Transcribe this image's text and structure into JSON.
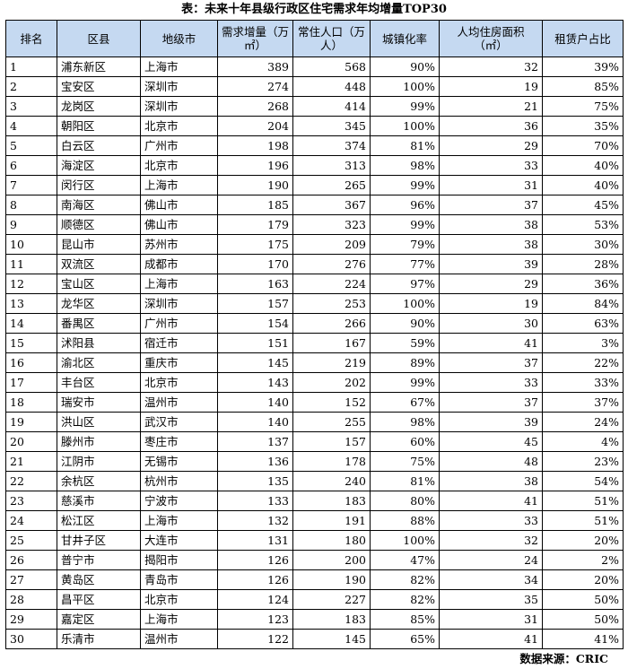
{
  "title": "表：未来十年县级行政区住宅需求年均增量TOP30",
  "headers": {
    "rank": "排名",
    "district": "区县",
    "city": "地级市",
    "demand": "需求增量（万㎡）",
    "population": "常住人口（万人）",
    "urbanization": "城镇化率",
    "area_per_capita": "人均住房面积（㎡）",
    "rental_share": "租赁户占比"
  },
  "rows": [
    {
      "rank": "1",
      "district": "浦东新区",
      "city": "上海市",
      "demand": "389",
      "population": "568",
      "urbanization": "90%",
      "area": "32",
      "rental": "39%"
    },
    {
      "rank": "2",
      "district": "宝安区",
      "city": "深圳市",
      "demand": "274",
      "population": "448",
      "urbanization": "100%",
      "area": "19",
      "rental": "85%"
    },
    {
      "rank": "3",
      "district": "龙岗区",
      "city": "深圳市",
      "demand": "268",
      "population": "414",
      "urbanization": "99%",
      "area": "21",
      "rental": "75%"
    },
    {
      "rank": "4",
      "district": "朝阳区",
      "city": "北京市",
      "demand": "204",
      "population": "345",
      "urbanization": "100%",
      "area": "36",
      "rental": "35%"
    },
    {
      "rank": "5",
      "district": "白云区",
      "city": "广州市",
      "demand": "198",
      "population": "374",
      "urbanization": "81%",
      "area": "29",
      "rental": "70%"
    },
    {
      "rank": "6",
      "district": "海淀区",
      "city": "北京市",
      "demand": "196",
      "population": "313",
      "urbanization": "98%",
      "area": "33",
      "rental": "40%"
    },
    {
      "rank": "7",
      "district": "闵行区",
      "city": "上海市",
      "demand": "190",
      "population": "265",
      "urbanization": "99%",
      "area": "31",
      "rental": "40%"
    },
    {
      "rank": "8",
      "district": "南海区",
      "city": "佛山市",
      "demand": "185",
      "population": "367",
      "urbanization": "96%",
      "area": "37",
      "rental": "45%"
    },
    {
      "rank": "9",
      "district": "顺德区",
      "city": "佛山市",
      "demand": "179",
      "population": "323",
      "urbanization": "99%",
      "area": "38",
      "rental": "53%"
    },
    {
      "rank": "10",
      "district": "昆山市",
      "city": "苏州市",
      "demand": "175",
      "population": "209",
      "urbanization": "79%",
      "area": "38",
      "rental": "30%"
    },
    {
      "rank": "11",
      "district": "双流区",
      "city": "成都市",
      "demand": "170",
      "population": "276",
      "urbanization": "77%",
      "area": "39",
      "rental": "28%"
    },
    {
      "rank": "12",
      "district": "宝山区",
      "city": "上海市",
      "demand": "163",
      "population": "224",
      "urbanization": "97%",
      "area": "29",
      "rental": "36%"
    },
    {
      "rank": "13",
      "district": "龙华区",
      "city": "深圳市",
      "demand": "157",
      "population": "253",
      "urbanization": "100%",
      "area": "19",
      "rental": "84%"
    },
    {
      "rank": "14",
      "district": "番禺区",
      "city": "广州市",
      "demand": "154",
      "population": "266",
      "urbanization": "90%",
      "area": "30",
      "rental": "63%"
    },
    {
      "rank": "15",
      "district": "沭阳县",
      "city": "宿迁市",
      "demand": "151",
      "population": "167",
      "urbanization": "59%",
      "area": "41",
      "rental": "3%"
    },
    {
      "rank": "16",
      "district": "渝北区",
      "city": "重庆市",
      "demand": "145",
      "population": "219",
      "urbanization": "89%",
      "area": "37",
      "rental": "22%"
    },
    {
      "rank": "17",
      "district": "丰台区",
      "city": "北京市",
      "demand": "143",
      "population": "202",
      "urbanization": "99%",
      "area": "33",
      "rental": "33%"
    },
    {
      "rank": "18",
      "district": "瑞安市",
      "city": "温州市",
      "demand": "140",
      "population": "152",
      "urbanization": "67%",
      "area": "37",
      "rental": "37%"
    },
    {
      "rank": "19",
      "district": "洪山区",
      "city": "武汉市",
      "demand": "140",
      "population": "255",
      "urbanization": "98%",
      "area": "39",
      "rental": "24%"
    },
    {
      "rank": "20",
      "district": "滕州市",
      "city": "枣庄市",
      "demand": "137",
      "population": "157",
      "urbanization": "60%",
      "area": "45",
      "rental": "4%"
    },
    {
      "rank": "21",
      "district": "江阴市",
      "city": "无锡市",
      "demand": "136",
      "population": "178",
      "urbanization": "75%",
      "area": "48",
      "rental": "23%"
    },
    {
      "rank": "22",
      "district": "余杭区",
      "city": "杭州市",
      "demand": "135",
      "population": "240",
      "urbanization": "81%",
      "area": "38",
      "rental": "54%"
    },
    {
      "rank": "23",
      "district": "慈溪市",
      "city": "宁波市",
      "demand": "133",
      "population": "183",
      "urbanization": "80%",
      "area": "41",
      "rental": "51%"
    },
    {
      "rank": "24",
      "district": "松江区",
      "city": "上海市",
      "demand": "132",
      "population": "191",
      "urbanization": "88%",
      "area": "33",
      "rental": "51%"
    },
    {
      "rank": "25",
      "district": "甘井子区",
      "city": "大连市",
      "demand": "131",
      "population": "180",
      "urbanization": "100%",
      "area": "32",
      "rental": "20%"
    },
    {
      "rank": "26",
      "district": "普宁市",
      "city": "揭阳市",
      "demand": "126",
      "population": "200",
      "urbanization": "47%",
      "area": "24",
      "rental": "2%"
    },
    {
      "rank": "27",
      "district": "黄岛区",
      "city": "青岛市",
      "demand": "126",
      "population": "190",
      "urbanization": "82%",
      "area": "34",
      "rental": "20%"
    },
    {
      "rank": "28",
      "district": "昌平区",
      "city": "北京市",
      "demand": "124",
      "population": "227",
      "urbanization": "82%",
      "area": "35",
      "rental": "50%"
    },
    {
      "rank": "29",
      "district": "嘉定区",
      "city": "上海市",
      "demand": "123",
      "population": "183",
      "urbanization": "85%",
      "area": "31",
      "rental": "50%"
    },
    {
      "rank": "30",
      "district": "乐清市",
      "city": "温州市",
      "demand": "122",
      "population": "145",
      "urbanization": "65%",
      "area": "41",
      "rental": "41%"
    }
  ],
  "source": "数据来源：CRIC"
}
